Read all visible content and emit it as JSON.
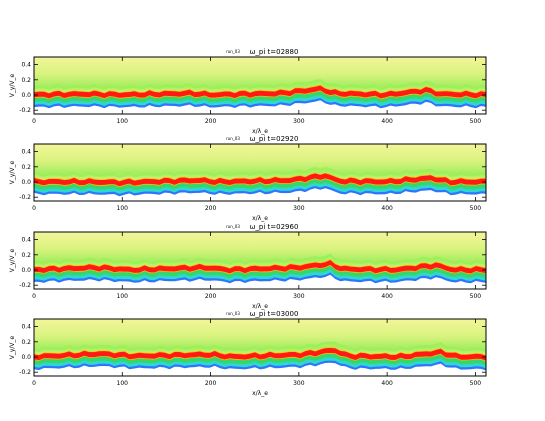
{
  "chart_data": [
    {
      "type": "heatmap",
      "title_left": "run_03",
      "title": "ω_pi t=02880",
      "xlabel": "x/λ_e",
      "ylabel": "V_y/V_e",
      "xlim": [
        0,
        512
      ],
      "ylim": [
        -0.25,
        0.5
      ],
      "xticks": [
        0,
        100,
        200,
        300,
        400,
        500
      ],
      "yticks": [
        -0.2,
        0.0,
        0.2,
        0.4
      ],
      "xtick_labels": [
        "0",
        "100",
        "200",
        "300",
        "400",
        "500"
      ],
      "ytick_labels": [
        "-0.2",
        "0.0",
        "0.2",
        "0.4"
      ],
      "ridge": [
        {
          "x": 0,
          "y": 0.0
        },
        {
          "x": 60,
          "y": 0.01
        },
        {
          "x": 100,
          "y": 0.0
        },
        {
          "x": 180,
          "y": 0.02
        },
        {
          "x": 200,
          "y": 0.0
        },
        {
          "x": 280,
          "y": 0.02
        },
        {
          "x": 325,
          "y": 0.08
        },
        {
          "x": 340,
          "y": 0.02
        },
        {
          "x": 400,
          "y": 0.0
        },
        {
          "x": 445,
          "y": 0.06
        },
        {
          "x": 460,
          "y": 0.01
        },
        {
          "x": 512,
          "y": 0.0
        }
      ]
    },
    {
      "type": "heatmap",
      "title_left": "run_03",
      "title": "ω_pi t=02920",
      "xlabel": "x/λ_e",
      "ylabel": "V_y/V_e",
      "xlim": [
        0,
        512
      ],
      "ylim": [
        -0.25,
        0.5
      ],
      "xticks": [
        0,
        100,
        200,
        300,
        400,
        500
      ],
      "yticks": [
        -0.2,
        0.0,
        0.2,
        0.4
      ],
      "xtick_labels": [
        "0",
        "100",
        "200",
        "300",
        "400",
        "500"
      ],
      "ytick_labels": [
        "-0.2",
        "0.0",
        "0.2",
        "0.4"
      ],
      "ridge": [
        {
          "x": 0,
          "y": 0.0
        },
        {
          "x": 60,
          "y": 0.0
        },
        {
          "x": 100,
          "y": -0.01
        },
        {
          "x": 185,
          "y": 0.02
        },
        {
          "x": 210,
          "y": 0.0
        },
        {
          "x": 290,
          "y": 0.02
        },
        {
          "x": 330,
          "y": 0.08
        },
        {
          "x": 345,
          "y": 0.01
        },
        {
          "x": 400,
          "y": 0.0
        },
        {
          "x": 450,
          "y": 0.05
        },
        {
          "x": 470,
          "y": 0.0
        },
        {
          "x": 512,
          "y": 0.0
        }
      ]
    },
    {
      "type": "heatmap",
      "title_left": "run_03",
      "title": "ω_pi t=02960",
      "xlabel": "x/λ_e",
      "ylabel": "V_y/V_e",
      "xlim": [
        0,
        512
      ],
      "ylim": [
        -0.25,
        0.5
      ],
      "xticks": [
        0,
        100,
        200,
        300,
        400,
        500
      ],
      "yticks": [
        -0.2,
        0.0,
        0.2,
        0.4
      ],
      "xtick_labels": [
        "0",
        "100",
        "200",
        "300",
        "400",
        "500"
      ],
      "ytick_labels": [
        "-0.2",
        "0.0",
        "0.2",
        "0.4"
      ],
      "ridge": [
        {
          "x": 0,
          "y": 0.0
        },
        {
          "x": 70,
          "y": 0.03
        },
        {
          "x": 110,
          "y": 0.0
        },
        {
          "x": 195,
          "y": 0.03
        },
        {
          "x": 220,
          "y": 0.0
        },
        {
          "x": 300,
          "y": 0.03
        },
        {
          "x": 335,
          "y": 0.08
        },
        {
          "x": 350,
          "y": 0.01
        },
        {
          "x": 410,
          "y": 0.0
        },
        {
          "x": 455,
          "y": 0.06
        },
        {
          "x": 475,
          "y": 0.0
        },
        {
          "x": 512,
          "y": 0.0
        }
      ]
    },
    {
      "type": "heatmap",
      "title_left": "run_03",
      "title": "ω_pi t=03000",
      "xlabel": "x/λ_e",
      "ylabel": "V_y/V_e",
      "xlim": [
        0,
        512
      ],
      "ylim": [
        -0.25,
        0.5
      ],
      "xticks": [
        0,
        100,
        200,
        300,
        400,
        500
      ],
      "yticks": [
        -0.2,
        0.0,
        0.2,
        0.4
      ],
      "xtick_labels": [
        "0",
        "100",
        "200",
        "300",
        "400",
        "500"
      ],
      "ytick_labels": [
        "-0.2",
        "0.0",
        "0.2",
        "0.4"
      ],
      "ridge": [
        {
          "x": 0,
          "y": 0.0
        },
        {
          "x": 75,
          "y": 0.04
        },
        {
          "x": 115,
          "y": 0.01
        },
        {
          "x": 200,
          "y": 0.03
        },
        {
          "x": 225,
          "y": 0.0
        },
        {
          "x": 305,
          "y": 0.03
        },
        {
          "x": 340,
          "y": 0.09
        },
        {
          "x": 355,
          "y": 0.01
        },
        {
          "x": 415,
          "y": 0.0
        },
        {
          "x": 460,
          "y": 0.06
        },
        {
          "x": 480,
          "y": 0.0
        },
        {
          "x": 512,
          "y": 0.0
        }
      ]
    }
  ],
  "colors": {
    "top_fill": "#f6f59a",
    "upper_band": "#9ef05a",
    "mid_band": "#bdf070",
    "ridge": "#ff1a14",
    "ridge_edge": "#ffc000",
    "under_band": "#36d66a",
    "cyan_band": "#2fd8cf",
    "blue_edge": "#2e74ff",
    "deep_blue": "#1b2bd6"
  }
}
